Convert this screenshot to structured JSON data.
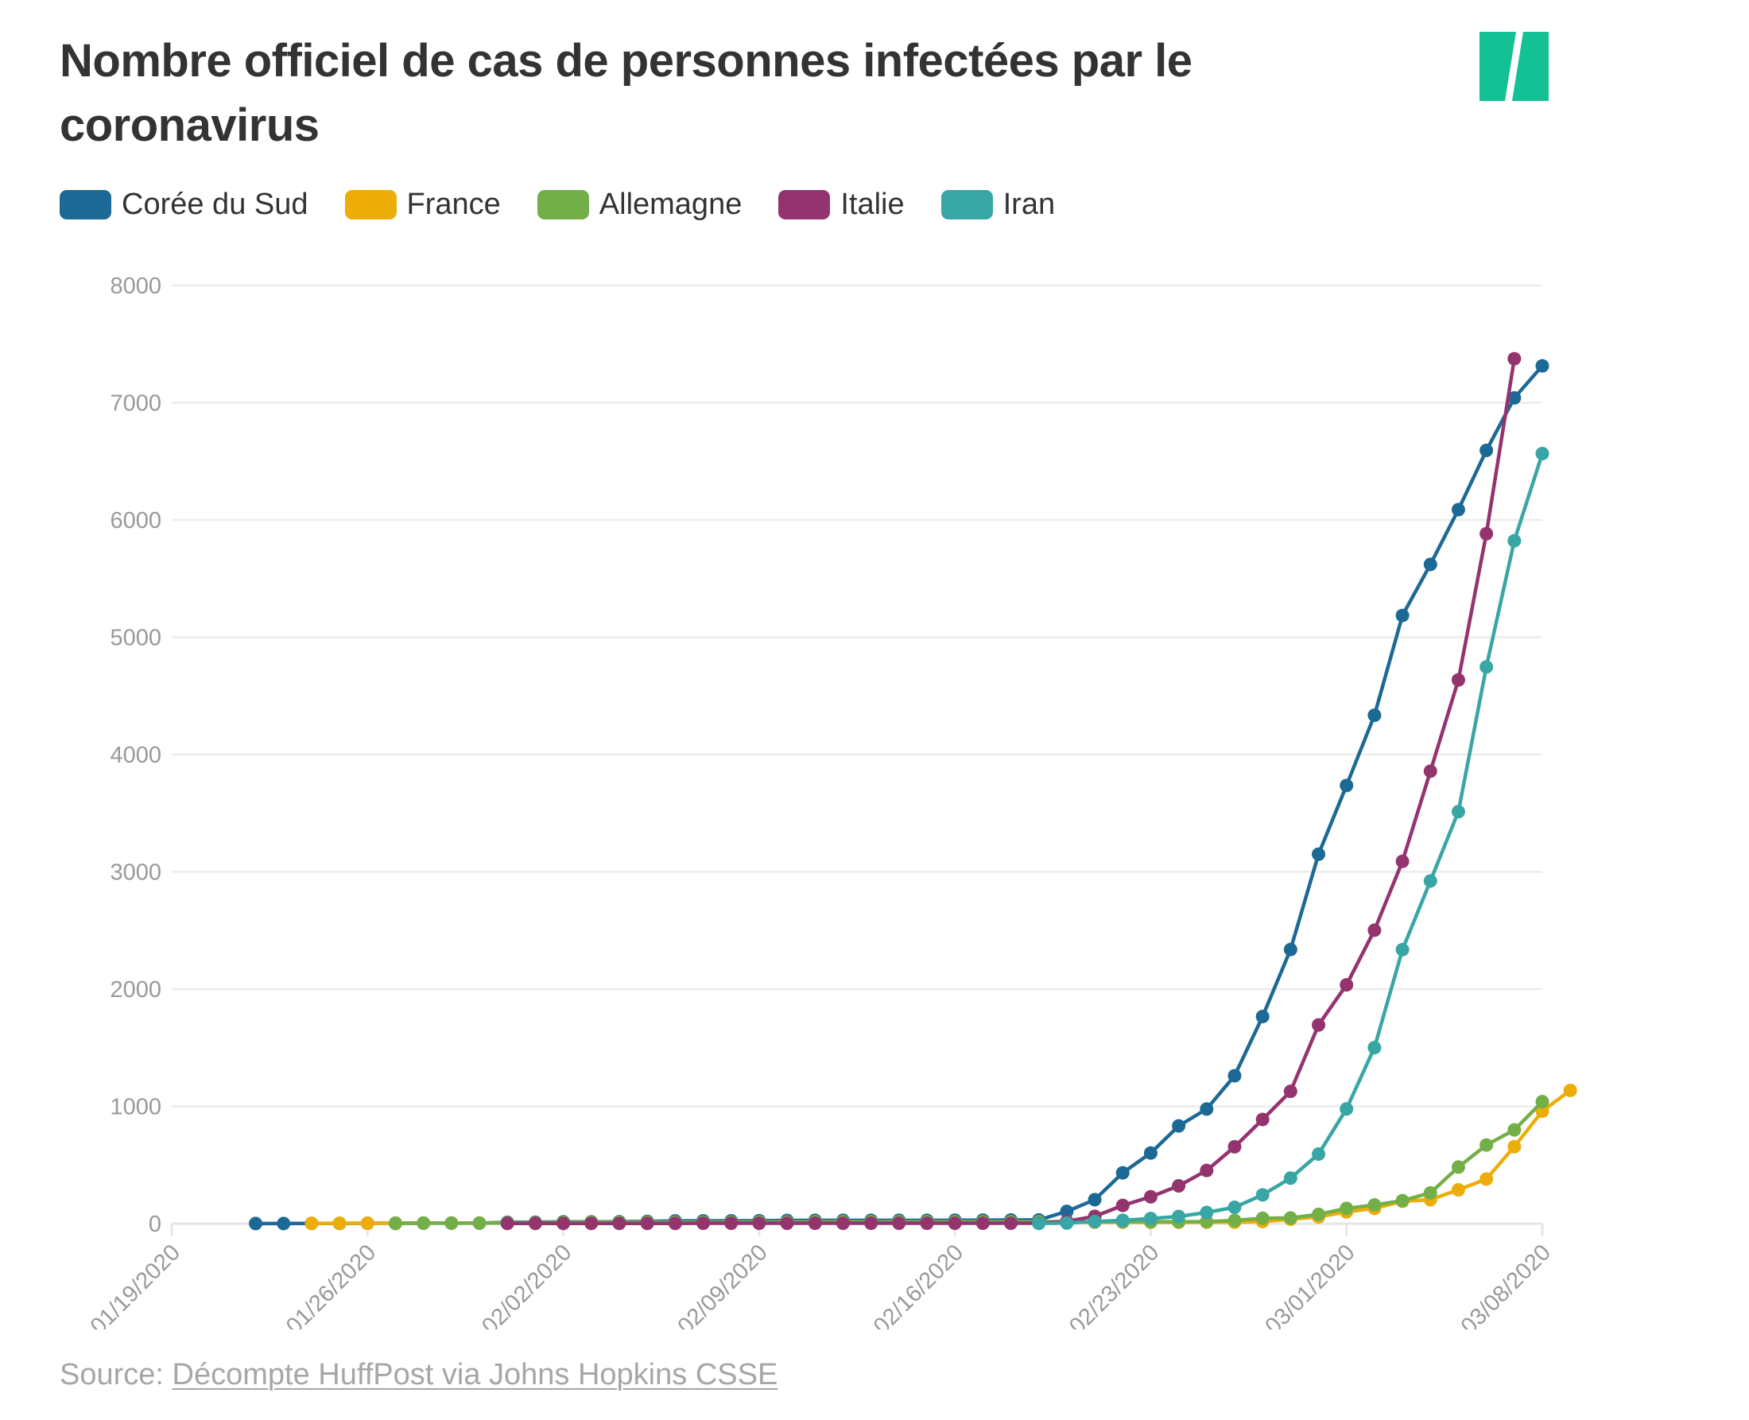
{
  "header": {
    "title": "Nombre officiel de cas de personnes infectées par le coronavirus",
    "logo": "huffpost-logo-icon",
    "logo_color": "#13C195"
  },
  "legend": [
    {
      "label": "Corée du Sud",
      "color": "#1D6996"
    },
    {
      "label": "France",
      "color": "#EDAD08"
    },
    {
      "label": "Allemagne",
      "color": "#73AF48"
    },
    {
      "label": "Italie",
      "color": "#94346E"
    },
    {
      "label": "Iran",
      "color": "#38A6A5"
    }
  ],
  "footer": {
    "source_prefix": "Source:",
    "source_link": "Décompte HuffPost via Johns Hopkins CSSE"
  },
  "chart_data": {
    "type": "line",
    "title": "Nombre officiel de cas de personnes infectées par le coronavirus",
    "xlabel": "",
    "ylabel": "",
    "x_start": "2020-01-19",
    "x_end": "2020-03-08",
    "x_ticks": [
      "01/19/2020",
      "01/26/2020",
      "02/02/2020",
      "02/09/2020",
      "02/16/2020",
      "02/23/2020",
      "03/01/2020",
      "03/08/2020"
    ],
    "ylim": [
      0,
      8000
    ],
    "y_ticks": [
      0,
      1000,
      2000,
      3000,
      4000,
      5000,
      6000,
      7000,
      8000
    ],
    "grid": true,
    "legend_position": "top-left",
    "series": [
      {
        "name": "Corée du Sud",
        "color": "#1D6996",
        "start": "2020-01-22",
        "values": [
          1,
          1,
          2,
          2,
          3,
          4,
          4,
          4,
          4,
          11,
          12,
          15,
          15,
          16,
          19,
          23,
          24,
          24,
          25,
          27,
          28,
          28,
          28,
          28,
          28,
          29,
          30,
          31,
          31,
          104,
          204,
          433,
          602,
          833,
          977,
          1261,
          1766,
          2337,
          3150,
          3736,
          4335,
          5186,
          5621,
          6088,
          6593,
          7041,
          7314
        ]
      },
      {
        "name": "France",
        "color": "#EDAD08",
        "start": "2020-01-24",
        "values": [
          2,
          3,
          3,
          3,
          4,
          5,
          5,
          5,
          6,
          6,
          6,
          6,
          6,
          6,
          6,
          11,
          11,
          11,
          11,
          11,
          11,
          11,
          12,
          12,
          12,
          12,
          12,
          12,
          12,
          12,
          12,
          12,
          12,
          12,
          18,
          38,
          57,
          100,
          130,
          191,
          204,
          288,
          380,
          656,
          959,
          1136
        ]
      },
      {
        "name": "Allemagne",
        "color": "#73AF48",
        "start": "2020-01-27",
        "values": [
          1,
          4,
          4,
          4,
          5,
          8,
          10,
          12,
          12,
          12,
          12,
          13,
          13,
          14,
          14,
          16,
          16,
          16,
          16,
          16,
          16,
          16,
          16,
          16,
          16,
          16,
          16,
          16,
          16,
          17,
          27,
          46,
          48,
          79,
          130,
          159,
          196,
          262,
          482,
          670,
          799,
          1040
        ]
      },
      {
        "name": "Italie",
        "color": "#94346E",
        "start": "2020-01-31",
        "values": [
          2,
          2,
          2,
          2,
          2,
          2,
          2,
          3,
          3,
          3,
          3,
          3,
          3,
          3,
          3,
          3,
          3,
          3,
          3,
          3,
          20,
          62,
          155,
          229,
          322,
          453,
          655,
          888,
          1128,
          1694,
          2036,
          2502,
          3089,
          3858,
          4636,
          5883,
          7375
        ]
      },
      {
        "name": "Iran",
        "color": "#38A6A5",
        "start": "2020-02-19",
        "values": [
          2,
          5,
          18,
          28,
          43,
          61,
          95,
          139,
          245,
          388,
          593,
          978,
          1501,
          2336,
          2922,
          3513,
          4747,
          5823,
          6566
        ]
      }
    ]
  }
}
